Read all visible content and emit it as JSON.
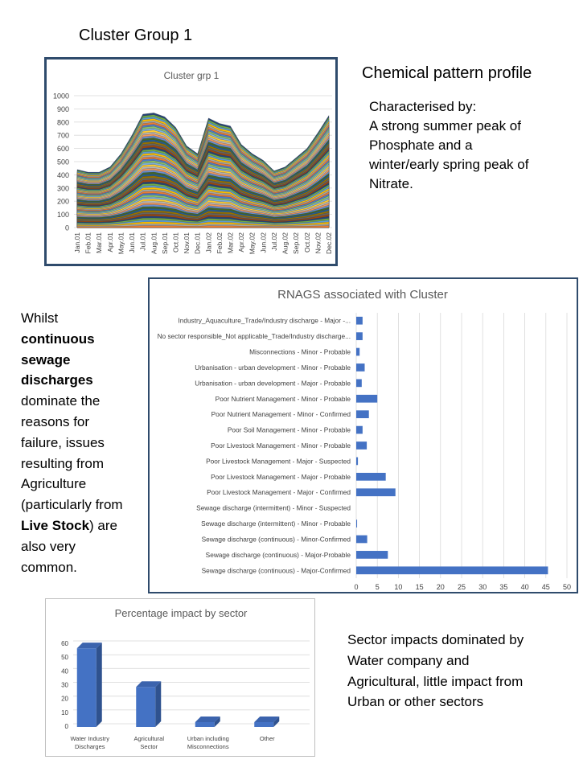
{
  "slide_title": "Cluster Group 1",
  "profile": {
    "title": "Chemical pattern profile",
    "description": "Characterised by:\nA strong summer peak of Phosphate and a winter/early spring peak of Nitrate."
  },
  "left_text": {
    "part1": "Whilst ",
    "bold1": "continuous sewage discharges",
    "part2": " dominate the reasons for failure, issues resulting from Agriculture (particularly from ",
    "bold2": "Live Stock",
    "part3": ") are also very common."
  },
  "sector_text": "Sector impacts dominated by Water company and Agricultural, little impact from Urban or other sectors",
  "colors": {
    "bar_fill": "#4472c4",
    "bar_dark": "#2f528f",
    "grid": "#d9d9d9",
    "border": "#2f4b6c"
  },
  "chart_data": [
    {
      "type": "area",
      "title": "Cluster grp 1",
      "x": [
        "Jan.01",
        "Feb.01",
        "Mar.01",
        "Apr.01",
        "May.01",
        "Jun.01",
        "Jul.01",
        "Aug.01",
        "Sep.01",
        "Oct.01",
        "Nov.01",
        "Dec.01",
        "Jan.02",
        "Feb.02",
        "Mar.02",
        "Apr.02",
        "May.02",
        "Jun.02",
        "Jul.02",
        "Aug.02",
        "Sep.02",
        "Oct.02",
        "Nov.02",
        "Dec.02"
      ],
      "total": [
        440,
        420,
        420,
        460,
        560,
        700,
        860,
        870,
        840,
        760,
        620,
        560,
        830,
        790,
        770,
        630,
        560,
        510,
        430,
        460,
        530,
        600,
        720,
        850
      ],
      "ylim": [
        0,
        1000
      ],
      "yticks": [
        0,
        100,
        200,
        300,
        400,
        500,
        600,
        700,
        800,
        900,
        1000
      ],
      "stacked_layers": 60,
      "grid": true
    },
    {
      "type": "bar",
      "orientation": "horizontal",
      "title": "RNAGS associated with Cluster",
      "categories": [
        "Industry_Aquaculture_Trade/Industry discharge - Major -...",
        "No sector responsible_Not applicable_Trade/Industry discharge...",
        "Misconnections - Minor - Probable",
        "Urbanisation - urban development - Minor - Probable",
        "Urbanisation - urban development - Major - Probable",
        "Poor Nutrient Management - Minor - Probable",
        "Poor Nutrient Management - Minor - Confirmed",
        "Poor Soil Management - Minor - Probable",
        "Poor Livestock Management - Minor - Probable",
        "Poor Livestock Management - Major - Suspected",
        "Poor Livestock Management - Major - Probable",
        "Poor Livestock Management - Major - Confirmed",
        "Sewage discharge (intermittent) - Minor - Suspected",
        "Sewage discharge (intermittent) - Minor - Probable",
        "Sewage discharge (continuous) - Minor-Confirmed",
        "Sewage discharge (continuous) - Major-Probable",
        "Sewage discharge (continuous) - Major-Confirmed"
      ],
      "values": [
        1.5,
        1.5,
        0.8,
        2,
        1.3,
        5,
        3,
        1.5,
        2.5,
        0.4,
        7,
        9.3,
        0,
        0.2,
        2.6,
        7.5,
        45.5
      ],
      "xlim": [
        0,
        50
      ],
      "xticks": [
        0,
        5,
        10,
        15,
        20,
        25,
        30,
        35,
        40,
        45,
        50
      ],
      "grid": true
    },
    {
      "type": "bar",
      "title": "Percentage impact by sector",
      "categories": [
        [
          "Water Industry",
          "Discharges"
        ],
        [
          "Agricultural",
          "Sector"
        ],
        [
          "Urban including",
          "Misconnections"
        ],
        [
          "Other"
        ]
      ],
      "values": [
        57,
        29,
        3.5,
        3.5
      ],
      "ylim": [
        0,
        60
      ],
      "yticks": [
        0,
        10,
        20,
        30,
        40,
        50,
        60
      ],
      "grid": true,
      "style": "3d-column"
    }
  ]
}
